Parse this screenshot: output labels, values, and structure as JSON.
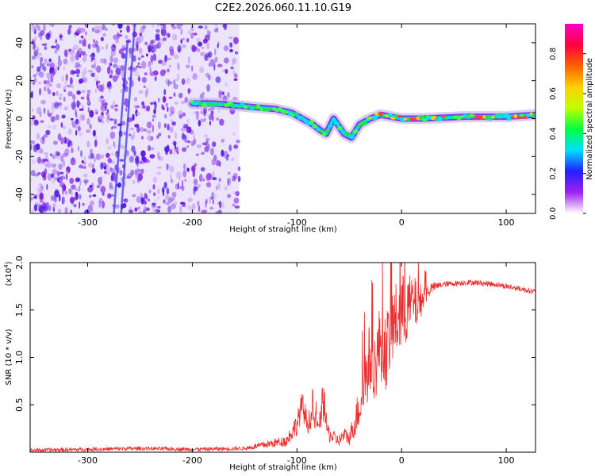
{
  "chart_data": [
    {
      "type": "heatmap",
      "title": "C2E2.2026.060.11.10.G19",
      "xlabel": "Height of straight line (km)",
      "ylabel": "Frequency (Hz)",
      "xlim": [
        -355,
        128
      ],
      "ylim": [
        -50,
        50
      ],
      "xticks": [
        -300,
        -200,
        -100,
        0,
        100
      ],
      "yticks": [
        -40,
        -20,
        0,
        20,
        40
      ],
      "grid": false,
      "colorbar": {
        "label": "Normalized spectral amplitude",
        "range": [
          0,
          0.95
        ],
        "ticks": [
          "0.0",
          "0.2",
          "0.4",
          "0.6",
          "0.8"
        ],
        "colors": [
          "#ffffff",
          "#a020f0",
          "#2020ff",
          "#00e0ff",
          "#00ff40",
          "#c0ff00",
          "#ffd000",
          "#ff6000",
          "#ff0040",
          "#ff00c0"
        ]
      },
      "ridge": {
        "description": "dominant spectral ridge frequency vs height",
        "x": [
          -200,
          -180,
          -160,
          -140,
          -120,
          -105,
          -95,
          -85,
          -78,
          -72,
          -65,
          -55,
          -48,
          -40,
          -30,
          -20,
          -10,
          0,
          20,
          60,
          100,
          128
        ],
        "y": [
          8,
          8,
          7,
          6,
          5,
          3,
          0,
          -3,
          -6,
          -8,
          0,
          -8,
          -10,
          -3,
          0,
          2,
          1,
          0,
          0,
          1,
          1,
          2
        ]
      },
      "noise_region_x": [
        -355,
        -155
      ]
    },
    {
      "type": "line",
      "xlabel": "Height of straight line (km)",
      "ylabel": "SNR (10 * v/v)",
      "y_scale_label": "(x10^4)",
      "xlim": [
        -355,
        128
      ],
      "ylim": [
        0,
        2.0
      ],
      "xticks": [
        -300,
        -200,
        -100,
        0,
        100
      ],
      "yticks": [
        "0.5",
        "1.0",
        "1.5",
        "2.0"
      ],
      "series": [
        {
          "color": "#e83030",
          "x": [
            -355,
            -300,
            -250,
            -200,
            -150,
            -130,
            -110,
            -100,
            -95,
            -90,
            -85,
            -80,
            -75,
            -70,
            -65,
            -60,
            -55,
            -50,
            -45,
            -40,
            -35,
            -30,
            -25,
            -20,
            -15,
            -10,
            -5,
            0,
            5,
            10,
            15,
            20,
            25,
            30,
            40,
            50,
            60,
            70,
            80,
            90,
            100,
            110,
            120,
            128
          ],
          "y": [
            0.02,
            0.03,
            0.04,
            0.03,
            0.04,
            0.08,
            0.12,
            0.3,
            0.5,
            0.3,
            0.4,
            0.25,
            0.45,
            0.2,
            0.15,
            0.12,
            0.18,
            0.15,
            0.3,
            0.5,
            0.75,
            1.0,
            0.9,
            1.2,
            1.05,
            1.3,
            1.4,
            1.45,
            1.5,
            1.6,
            1.55,
            1.62,
            1.7,
            1.74,
            1.77,
            1.78,
            1.79,
            1.79,
            1.78,
            1.77,
            1.75,
            1.73,
            1.71,
            1.69
          ],
          "spread": [
            0.02,
            0.02,
            0.02,
            0.02,
            0.02,
            0.04,
            0.06,
            0.12,
            0.15,
            0.12,
            0.12,
            0.1,
            0.12,
            0.1,
            0.08,
            0.06,
            0.08,
            0.08,
            0.15,
            0.25,
            0.35,
            0.4,
            0.35,
            0.45,
            0.4,
            0.45,
            0.4,
            0.45,
            0.35,
            0.3,
            0.25,
            0.15,
            0.08,
            0.05,
            0.03,
            0.03,
            0.03,
            0.03,
            0.03,
            0.03,
            0.03,
            0.03,
            0.03,
            0.03
          ]
        }
      ]
    }
  ]
}
